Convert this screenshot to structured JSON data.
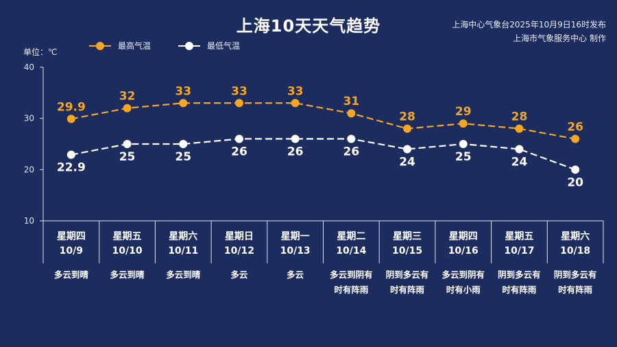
{
  "title": "上海10天天气趋势",
  "publisher": {
    "line1": "上海中心气象台2025年10月9日16时发布",
    "line2": "上海市气象服务中心 制作"
  },
  "unit_label": "单位：℃",
  "colors": {
    "background": "#1c2c5e",
    "high": "#f5a623",
    "low": "#ffffff",
    "axis": "#dfe4f0"
  },
  "chart_data": {
    "type": "line",
    "title": "上海10天天气趋势",
    "ylabel": "单位：℃",
    "ylim": [
      10,
      40
    ],
    "yticks": [
      10,
      20,
      30,
      40
    ],
    "grid": false,
    "legend_position": "top-left",
    "x": [
      "10/9",
      "10/10",
      "10/11",
      "10/12",
      "10/13",
      "10/14",
      "10/15",
      "10/16",
      "10/17",
      "10/18"
    ],
    "weekdays": [
      "星期四",
      "星期五",
      "星期六",
      "星期日",
      "星期一",
      "星期二",
      "星期三",
      "星期四",
      "星期五",
      "星期六"
    ],
    "weather": [
      [
        "多云到晴"
      ],
      [
        "多云到晴"
      ],
      [
        "多云到晴"
      ],
      [
        "多云"
      ],
      [
        "多云"
      ],
      [
        "多云到阴有",
        "时有阵雨"
      ],
      [
        "阴到多云有",
        "时有阵雨"
      ],
      [
        "多云到阴有",
        "时有小雨"
      ],
      [
        "阴到多云有",
        "时有阵雨"
      ],
      [
        "阴到多云有",
        "时有阵雨"
      ]
    ],
    "series": [
      {
        "name": "最高气温",
        "values": [
          29.9,
          32,
          33,
          33,
          33,
          31,
          28,
          29,
          28,
          26
        ],
        "labels": [
          "29.9",
          "32",
          "33",
          "33",
          "33",
          "31",
          "28",
          "29",
          "28",
          "26"
        ]
      },
      {
        "name": "最低气温",
        "values": [
          22.9,
          25,
          25,
          26,
          26,
          26,
          24,
          25,
          24,
          20
        ],
        "labels": [
          "22.9",
          "25",
          "25",
          "26",
          "26",
          "26",
          "24",
          "25",
          "24",
          "20"
        ]
      }
    ]
  }
}
